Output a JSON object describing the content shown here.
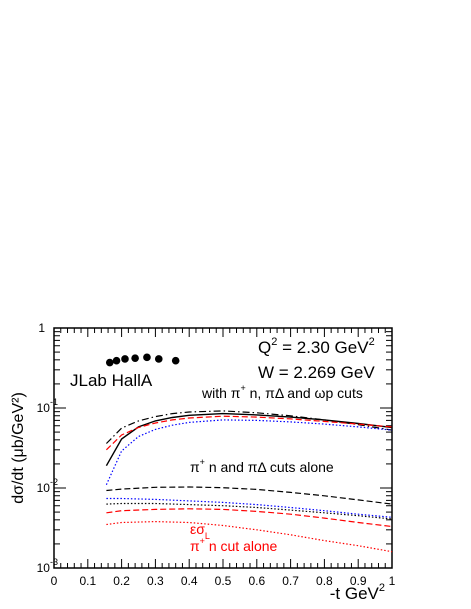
{
  "chart_data": {
    "type": "line",
    "x_axis": {
      "label_main": "-t GeV",
      "label_sup": "2",
      "range": [
        0,
        1
      ],
      "ticks": [
        0,
        0.1,
        0.2,
        0.3,
        0.4,
        0.5,
        0.6,
        0.7,
        0.8,
        0.9,
        1
      ],
      "tick_labels": [
        "0",
        "0.1",
        "0.2",
        "0.3",
        "0.4",
        "0.5",
        "0.6",
        "0.7",
        "0.8",
        "0.9",
        "1"
      ]
    },
    "y_axis": {
      "label": "dσ/dt (μb/GeV²)",
      "scale": "log",
      "range": [
        0.001,
        1
      ],
      "ticks": [
        0.001,
        0.01,
        0.1,
        1
      ],
      "tick_labels": [
        {
          "base": "10",
          "exp": "-3"
        },
        {
          "base": "10",
          "exp": "-2"
        },
        {
          "base": "10",
          "exp": "-1"
        },
        {
          "base": "1",
          "exp": ""
        }
      ]
    },
    "grid": false,
    "legend": "none",
    "annotations": {
      "q2": {
        "main": "Q",
        "sup": "2",
        "rest": " = 2.30 GeV",
        "unit_sup": "2"
      },
      "w": "W = 2.269 GeV",
      "dataset": "JLab HallA",
      "label_all_cuts": {
        "p1": "with π",
        "sup": "+",
        "p2": " n, πΔ and ωp cuts"
      },
      "label_pin_pidelta": {
        "p1": "π",
        "sup": "+",
        "p2": " n and πΔ cuts alone"
      },
      "label_eps_sigma": {
        "p1": "εσ",
        "sub": "L"
      },
      "label_pin": {
        "p1": "π",
        "sup": "+",
        "p2": " n cut alone"
      }
    },
    "series": [
      {
        "kind": "points",
        "color": "#000000",
        "x": [
          0.165,
          0.185,
          0.21,
          0.24,
          0.275,
          0.31,
          0.36
        ],
        "y": [
          0.37,
          0.39,
          0.41,
          0.42,
          0.43,
          0.41,
          0.39
        ]
      },
      {
        "kind": "line",
        "style": "solid",
        "color": "#000000",
        "x": [
          0.155,
          0.2,
          0.25,
          0.3,
          0.35,
          0.4,
          0.5,
          0.6,
          0.7,
          0.8,
          0.9,
          1.0
        ],
        "y": [
          0.019,
          0.041,
          0.058,
          0.069,
          0.076,
          0.081,
          0.085,
          0.082,
          0.077,
          0.071,
          0.064,
          0.057
        ]
      },
      {
        "kind": "line",
        "style": "dashdot",
        "color": "#000000",
        "x": [
          0.155,
          0.2,
          0.25,
          0.3,
          0.35,
          0.4,
          0.5,
          0.6,
          0.7,
          0.8,
          0.9,
          1.0
        ],
        "y": [
          0.036,
          0.056,
          0.069,
          0.078,
          0.085,
          0.089,
          0.092,
          0.087,
          0.08,
          0.071,
          0.062,
          0.053
        ]
      },
      {
        "kind": "line",
        "style": "dashed",
        "color": "#ff0000",
        "x": [
          0.155,
          0.2,
          0.25,
          0.3,
          0.35,
          0.4,
          0.5,
          0.6,
          0.7,
          0.8,
          0.9,
          1.0
        ],
        "y": [
          0.03,
          0.046,
          0.057,
          0.065,
          0.071,
          0.075,
          0.079,
          0.077,
          0.073,
          0.068,
          0.063,
          0.058
        ]
      },
      {
        "kind": "line",
        "style": "dotted",
        "color": "#0000ff",
        "x": [
          0.155,
          0.2,
          0.25,
          0.3,
          0.35,
          0.4,
          0.5,
          0.6,
          0.7,
          0.8,
          0.9,
          1.0
        ],
        "y": [
          0.011,
          0.029,
          0.044,
          0.054,
          0.061,
          0.066,
          0.071,
          0.07,
          0.067,
          0.063,
          0.058,
          0.053
        ]
      },
      {
        "kind": "line",
        "style": "dashed",
        "color": "#000000",
        "x": [
          0.155,
          0.2,
          0.3,
          0.4,
          0.5,
          0.6,
          0.7,
          0.8,
          0.9,
          1.0
        ],
        "y": [
          0.0093,
          0.0097,
          0.0102,
          0.0103,
          0.0101,
          0.0096,
          0.0088,
          0.008,
          0.0071,
          0.0063
        ]
      },
      {
        "kind": "line",
        "style": "dotted",
        "color": "#0000ff",
        "x": [
          0.155,
          0.2,
          0.3,
          0.4,
          0.5,
          0.6,
          0.7,
          0.8,
          0.9,
          1.0
        ],
        "y": [
          0.0074,
          0.0074,
          0.0072,
          0.0069,
          0.0066,
          0.0062,
          0.0057,
          0.0052,
          0.0047,
          0.0043
        ]
      },
      {
        "kind": "line",
        "style": "dotted",
        "color": "#000000",
        "x": [
          0.155,
          0.2,
          0.3,
          0.4,
          0.5,
          0.6,
          0.7,
          0.8,
          0.9,
          1.0
        ],
        "y": [
          0.0063,
          0.0064,
          0.0064,
          0.0062,
          0.006,
          0.0057,
          0.0053,
          0.0049,
          0.0045,
          0.0041
        ]
      },
      {
        "kind": "line",
        "style": "dashed",
        "color": "#ff0000",
        "x": [
          0.155,
          0.2,
          0.3,
          0.4,
          0.5,
          0.6,
          0.7,
          0.8,
          0.9,
          1.0
        ],
        "y": [
          0.0049,
          0.0052,
          0.0054,
          0.0055,
          0.0054,
          0.0051,
          0.0047,
          0.0042,
          0.0037,
          0.0033
        ]
      },
      {
        "kind": "line",
        "style": "dotted",
        "color": "#ff0000",
        "x": [
          0.155,
          0.2,
          0.3,
          0.4,
          0.5,
          0.6,
          0.7,
          0.8,
          0.9,
          1.0
        ],
        "y": [
          0.0035,
          0.0037,
          0.0038,
          0.0037,
          0.0034,
          0.003,
          0.0026,
          0.0022,
          0.0019,
          0.0016
        ]
      }
    ]
  }
}
